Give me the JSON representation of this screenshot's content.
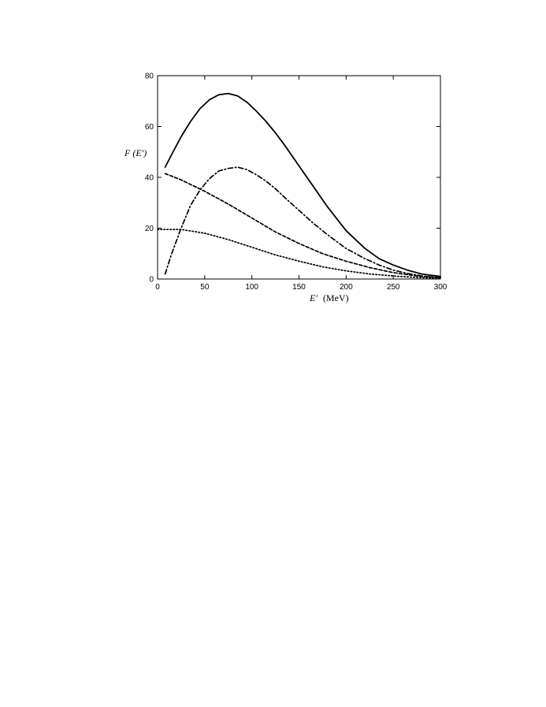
{
  "chart_data": {
    "type": "line",
    "xlabel_italic": "E'",
    "xlabel_unit": "(MeV)",
    "ylabel": "F (E')",
    "xlim": [
      0,
      300
    ],
    "ylim": [
      0,
      80
    ],
    "xticks": [
      0,
      50,
      100,
      150,
      200,
      250,
      300
    ],
    "yticks": [
      0,
      20,
      40,
      60,
      80
    ],
    "grid": false,
    "series": [
      {
        "style": "solid",
        "color": "#000000",
        "x": [
          8,
          15,
          25,
          35,
          45,
          55,
          65,
          75,
          85,
          95,
          105,
          115,
          125,
          135,
          150,
          165,
          180,
          200,
          220,
          235,
          250,
          265,
          280,
          300
        ],
        "y": [
          44,
          49,
          56,
          62,
          67,
          70.5,
          72.5,
          73,
          72,
          69.5,
          66,
          62,
          57.5,
          52.5,
          44.5,
          36.5,
          28.5,
          19,
          12,
          8,
          5.5,
          3.5,
          2,
          1
        ]
      },
      {
        "style": "dashdot",
        "color": "#000000",
        "x": [
          8,
          15,
          25,
          35,
          45,
          55,
          65,
          75,
          85,
          95,
          105,
          115,
          125,
          135,
          150,
          165,
          180,
          200,
          220,
          235,
          250,
          265,
          280,
          300
        ],
        "y": [
          2,
          10,
          20,
          29,
          35,
          39.5,
          42.5,
          43.5,
          44,
          43,
          41,
          38.5,
          35.5,
          32,
          27,
          22,
          17.5,
          12,
          8,
          5.5,
          3.5,
          2.2,
          1.2,
          0.5
        ]
      },
      {
        "style": "dashed",
        "color": "#000000",
        "x": [
          8,
          25,
          50,
          75,
          100,
          125,
          150,
          175,
          200,
          225,
          250,
          275,
          300
        ],
        "y": [
          41.5,
          39,
          34.5,
          29.5,
          24,
          18.5,
          14,
          10,
          7,
          4.5,
          2.5,
          1.2,
          0.5
        ]
      },
      {
        "style": "dotted",
        "color": "#000000",
        "x": [
          0,
          25,
          50,
          75,
          100,
          125,
          150,
          175,
          200,
          225,
          250,
          275,
          300
        ],
        "y": [
          19.5,
          19.5,
          18,
          15.5,
          12.5,
          9.5,
          7,
          4.8,
          3.2,
          2,
          1.2,
          0.6,
          0.3
        ]
      }
    ]
  }
}
